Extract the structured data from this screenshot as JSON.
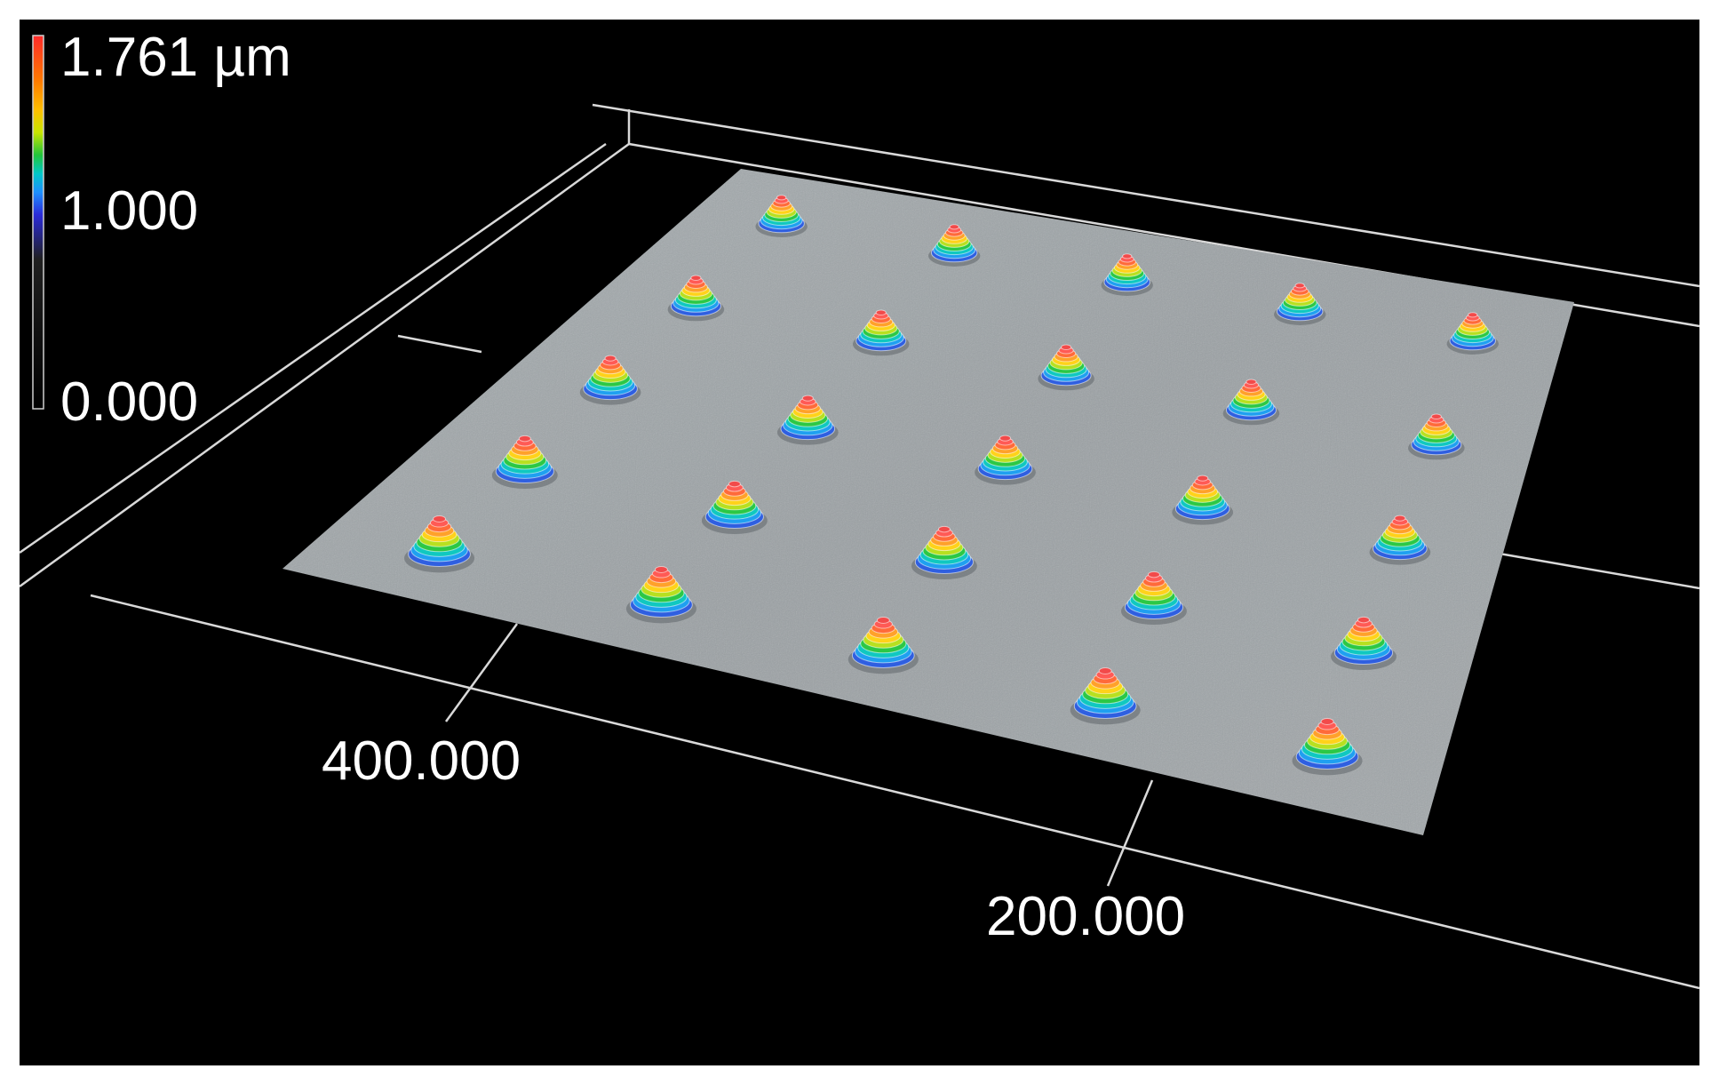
{
  "color_scale": {
    "max_label": "1.761 µm",
    "mid_label": "1.000",
    "min_label": "0.000",
    "max_value": 1.761,
    "mid_value": 1.0,
    "min_value": 0.0,
    "unit": "µm",
    "colors": [
      "#000000",
      "#2b2bd9",
      "#1e90ff",
      "#00c8c8",
      "#22c43a",
      "#c8e600",
      "#ffc000",
      "#ff7a00",
      "#ff2a2a"
    ]
  },
  "axes": {
    "x_tick_label": "400.000",
    "y_tick_label": "200.000",
    "line_color": "#d9d9d9"
  },
  "surface": {
    "color": "#9da3a6",
    "bump_grid": {
      "rows": 5,
      "cols": 5,
      "count": 25
    }
  }
}
